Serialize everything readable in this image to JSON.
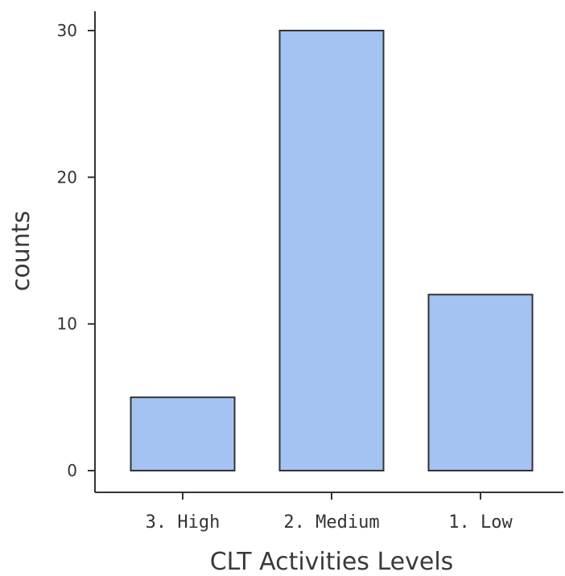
{
  "chart_data": {
    "type": "bar",
    "categories": [
      "3. High",
      "2. Medium",
      "1. Low"
    ],
    "values": [
      5,
      30,
      12
    ],
    "xlabel": "CLT Activities Levels",
    "ylabel": "counts",
    "ylim": [
      0,
      30
    ],
    "yticks": [
      0,
      10,
      20,
      30
    ],
    "grid": false,
    "legend": false,
    "bar_fill": "#a4c3f2",
    "bar_stroke": "#333333",
    "axis_color": "#333333"
  }
}
